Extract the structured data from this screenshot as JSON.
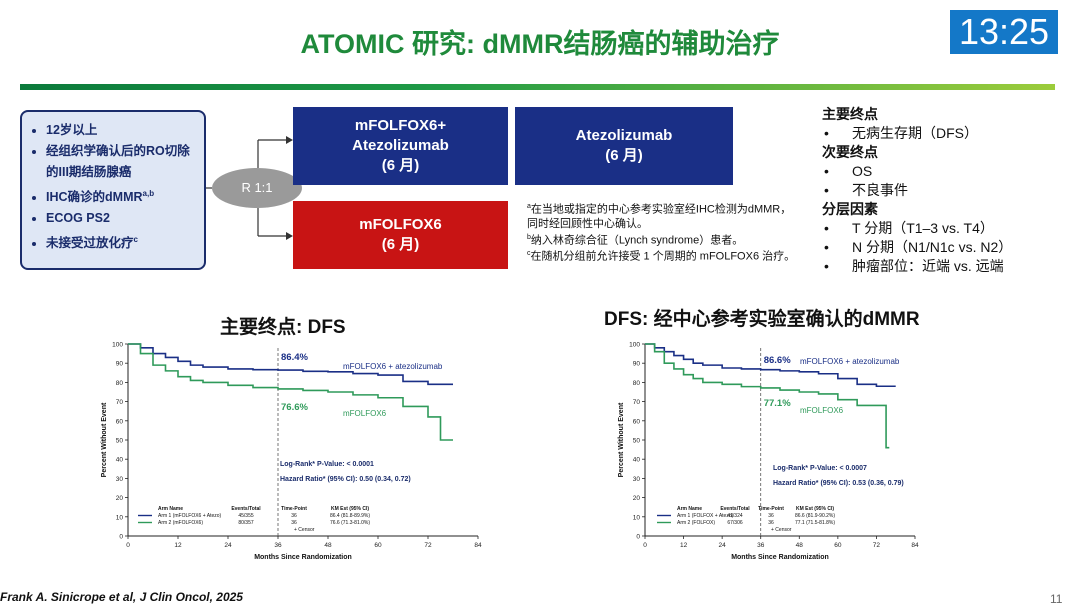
{
  "title": "ATOMIC 研究: dMMR结肠癌的辅助治疗",
  "timer": "13:25",
  "criteria": [
    "12岁以上",
    "经组织学确认后的RO切除的III期结肠腺癌",
    "IHC确诊的dMMR",
    "ECOG PS2",
    "未接受过放化疗"
  ],
  "criteria_sup": {
    "ihc": "a,b",
    "chemo": "c"
  },
  "randomization": "R 1:1",
  "arm1": {
    "line1": "mFOLFOX6+",
    "line2": "Atezolizumab",
    "line3": "(6 月)"
  },
  "atezo": {
    "line1": "Atezolizumab",
    "line2": "(6 月)"
  },
  "arm2": {
    "line1": "mFOLFOX6",
    "line2": "(6 月)"
  },
  "notes": [
    {
      "sup": "a",
      "text": "在当地或指定的中心参考实验室经IHC检测为dMMR，同时经回顾性中心确认。"
    },
    {
      "sup": "b",
      "text": "纳入林奇综合征（Lynch syndrome）患者。"
    },
    {
      "sup": "c",
      "text": "在随机分组前允许接受 1 个周期的 mFOLFOX6 治疗。"
    }
  ],
  "endpoints": {
    "primary_h": "主要终点",
    "primary": [
      "无病生存期（DFS）"
    ],
    "secondary_h": "次要终点",
    "secondary": [
      "OS",
      "不良事件"
    ],
    "strat_h": "分层因素",
    "strat": [
      "T 分期（T1–3 vs. T4）",
      "N 分期（N1/N1c vs. N2）",
      "肿瘤部位：近端 vs. 远端"
    ]
  },
  "plot1_title": "主要终点: DFS",
  "plot2_title": "DFS: 经中心参考实验室确认的dMMR",
  "citation": "Frank A. Sinicrope et al,  J Clin Oncol, 2025",
  "page_number": "11",
  "colors": {
    "arm1": "#1a2f86",
    "arm2": "#2f9a5a",
    "accent": "#1f8a3b"
  },
  "chart_data": [
    {
      "type": "line",
      "xlabel": "Months Since Randomization",
      "ylabel": "Percent Without Event",
      "xlim": [
        0,
        84
      ],
      "ylim": [
        0,
        100
      ],
      "xticks": [
        0,
        12,
        24,
        36,
        48,
        60,
        72,
        84
      ],
      "yticks": [
        0,
        10,
        20,
        30,
        40,
        50,
        60,
        70,
        80,
        90,
        100
      ],
      "timepoint": 36,
      "series": [
        {
          "name": "mFOLFOX6 + atezolizumab",
          "color": "#1a2f86",
          "label_value": "86.4%",
          "x": [
            0,
            3,
            6,
            9,
            12,
            15,
            18,
            24,
            30,
            36,
            42,
            48,
            54,
            60,
            66,
            72,
            78
          ],
          "y": [
            100,
            98,
            95,
            93,
            91,
            89,
            88,
            87,
            86.6,
            86.4,
            85.8,
            85.5,
            84.6,
            83.8,
            80.5,
            79,
            79
          ]
        },
        {
          "name": "mFOLFOX6",
          "color": "#2f9a5a",
          "label_value": "76.6%",
          "x": [
            0,
            3,
            6,
            9,
            12,
            15,
            18,
            24,
            30,
            36,
            42,
            48,
            54,
            60,
            66,
            72,
            75,
            78
          ],
          "y": [
            100,
            95,
            89,
            86,
            83,
            81,
            80,
            78.5,
            77.3,
            76.6,
            75.8,
            75,
            73.5,
            72,
            67.5,
            62,
            50,
            50
          ]
        }
      ],
      "logrank": "Log-Rank* P-Value: < 0.0001",
      "hazard": "Hazard Ratio* (95% CI): 0.50 (0.34, 0.72)",
      "table": {
        "headers": [
          "Arm Name",
          "Events/Total",
          "Time-Point",
          "KM Est (95% CI)"
        ],
        "rows": [
          [
            "Arm 1 (mFOLFOX6 + Atezo)",
            "45/355",
            "36",
            "86.4 (81.8-89.9%)"
          ],
          [
            "Arm 2 (mFOLFOX6)",
            "80/357",
            "36",
            "76.6 (71.3-81.0%)"
          ]
        ],
        "censor": "+ Censor"
      }
    },
    {
      "type": "line",
      "xlabel": "Months Since Randomization",
      "ylabel": "Percent Without Event",
      "xlim": [
        0,
        84
      ],
      "ylim": [
        0,
        100
      ],
      "xticks": [
        0,
        12,
        24,
        36,
        48,
        60,
        72,
        84
      ],
      "yticks": [
        0,
        10,
        20,
        30,
        40,
        50,
        60,
        70,
        80,
        90,
        100
      ],
      "timepoint": 36,
      "series": [
        {
          "name": "mFOLFOX6 + atezolizumab",
          "color": "#1a2f86",
          "label_value": "86.6%",
          "x": [
            0,
            3,
            6,
            9,
            12,
            15,
            18,
            24,
            30,
            36,
            42,
            48,
            54,
            60,
            66,
            72,
            78
          ],
          "y": [
            100,
            98,
            96,
            94,
            92,
            90,
            89,
            87.5,
            87,
            86.6,
            86,
            85.5,
            84.5,
            82,
            79,
            78,
            78
          ]
        },
        {
          "name": "mFOLFOX6",
          "color": "#2f9a5a",
          "label_value": "77.1%",
          "x": [
            0,
            3,
            6,
            9,
            12,
            15,
            18,
            24,
            30,
            36,
            42,
            48,
            54,
            60,
            66,
            72,
            75,
            76
          ],
          "y": [
            100,
            96,
            90,
            87,
            84,
            82,
            80,
            79,
            77.8,
            77.1,
            76,
            75,
            74,
            71,
            68,
            68,
            46,
            46
          ]
        }
      ],
      "logrank": "Log-Rank* P-Value: < 0.0007",
      "hazard": "Hazard Ratio* (95% CI): 0.53 (0.36, 0.79)",
      "table": {
        "headers": [
          "Arm Name",
          "Events/Total",
          "Time-Point",
          "KM Est (95% CI)"
        ],
        "rows": [
          [
            "Arm 1 (FOLFOX + Atezo)",
            "41/324",
            "36",
            "86.6 (81.9-90.2%)"
          ],
          [
            "Arm 2 (FOLFOX)",
            "67/306",
            "36",
            "77.1 (71.5-81.8%)"
          ]
        ],
        "censor": "+ Censor"
      }
    }
  ]
}
